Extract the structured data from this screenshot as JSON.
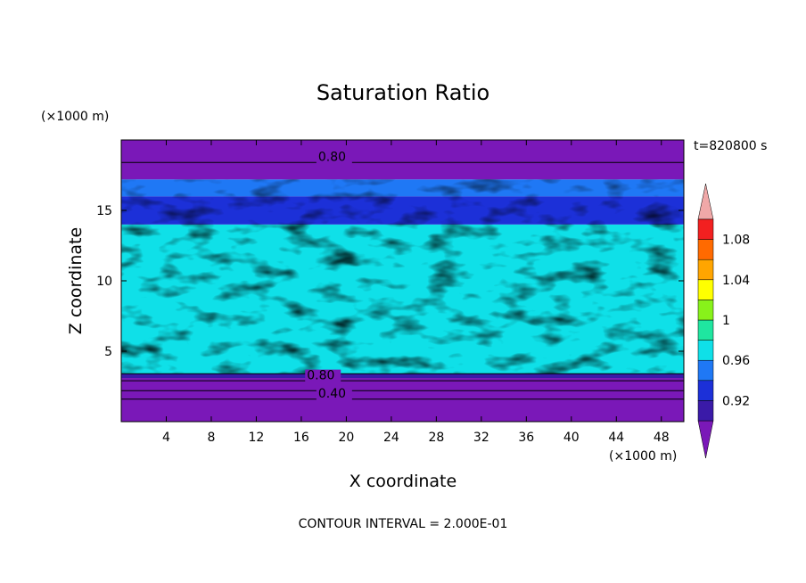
{
  "chart_data": {
    "type": "heatmap",
    "title": "Saturation Ratio",
    "xlabel": "X coordinate",
    "ylabel": "Z coordinate",
    "x_unit": "(×1000 m)",
    "y_unit": "(×1000 m)",
    "time_label": "t=820800 s",
    "footer": "CONTOUR INTERVAL = 2.000E-01",
    "xlim": [
      0,
      50
    ],
    "ylim": [
      0,
      20
    ],
    "x_ticks": [
      4,
      8,
      12,
      16,
      20,
      24,
      28,
      32,
      36,
      40,
      44,
      48
    ],
    "y_ticks": [
      5,
      10,
      15
    ],
    "colorbar": {
      "levels": [
        0.92,
        0.94,
        0.96,
        0.98,
        1.0,
        1.02,
        1.04,
        1.06,
        1.08,
        1.1
      ],
      "colors": [
        "#7a18b8",
        "#3a1aa8",
        "#1c30d8",
        "#1f78f5",
        "#0fe0e8",
        "#1fe6a0",
        "#88f21a",
        "#ffff00",
        "#ffa500",
        "#ff6a00",
        "#f22020",
        "#f0a8a8"
      ],
      "tick_labels": [
        "0.92",
        "0.96",
        "1",
        "1.04",
        "1.08"
      ]
    },
    "contour_labels": [
      {
        "text": "0.80",
        "x": 17.5,
        "z": 18.5
      },
      {
        "text": "0.80",
        "x": 16.5,
        "z": 3.0
      },
      {
        "text": "0.40",
        "x": 17.5,
        "z": 1.7
      }
    ],
    "bands": [
      {
        "z0": 0,
        "z1": 3.1,
        "value": 0.6
      },
      {
        "z0": 3.1,
        "z1": 3.4,
        "value": 0.93
      },
      {
        "z0": 3.4,
        "z1": 14.0,
        "value": 0.99
      },
      {
        "z0": 14.0,
        "z1": 16.0,
        "value": 0.95
      },
      {
        "z0": 16.0,
        "z1": 17.2,
        "value": 0.97
      },
      {
        "z0": 17.2,
        "z1": 20,
        "value": 0.8
      }
    ]
  }
}
